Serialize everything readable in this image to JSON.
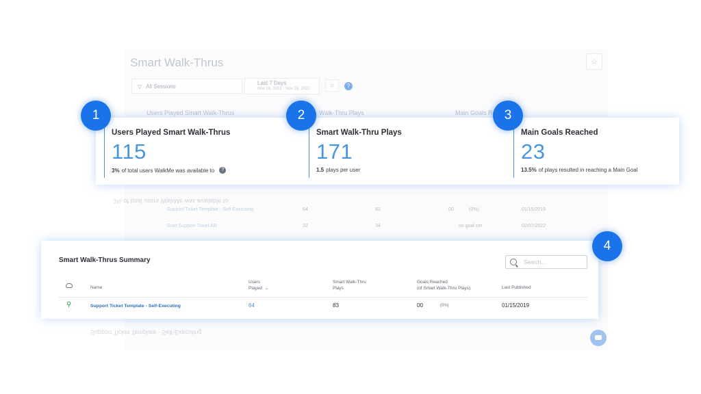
{
  "background": {
    "title": "Smart Walk-Thrus",
    "filter_label": "All Sessions",
    "date_label": "Last 7 Days",
    "date_range": "Nov 18, 2022 - Nov 25, 2022",
    "headers": [
      "Users Played Smart Walk-Thrus",
      "Walk-Thru Plays",
      "Main Goals Re"
    ],
    "rows": [
      {
        "name": "Support Ticket Template - Self-Executing",
        "users": "64",
        "plays": "83",
        "goals": "00",
        "pct": "(0%)",
        "date": "01/15/2019"
      },
      {
        "name": "Start Support Ticket AB",
        "users": "32",
        "plays": "34",
        "goals": "",
        "pct": "no goal set",
        "date": "02/07/2022"
      }
    ]
  },
  "stats": [
    {
      "badge": "1",
      "label": "Users Played Smart Walk-Thrus",
      "value": "115",
      "sub_bold": "3%",
      "sub_text": "of total users WalkMe was available to",
      "has_info": true
    },
    {
      "badge": "2",
      "label": "Smart Walk-Thru Plays",
      "value": "171",
      "sub_bold": "1.5",
      "sub_text": "plays per user",
      "has_info": false
    },
    {
      "badge": "3",
      "label": "Main Goals Reached",
      "value": "23",
      "sub_bold": "13.5%",
      "sub_text": "of plays resulted in reaching a Main Goal",
      "has_info": false
    }
  ],
  "summary": {
    "badge": "4",
    "title": "Smart Walk-Thrus Summary",
    "search_placeholder": "Search...",
    "columns": {
      "name": "Name",
      "users_line1": "Users",
      "users_line2": "Played",
      "plays_line1": "Smart Walk-Thru",
      "plays_line2": "Plays",
      "goals_line1": "Goals Reached",
      "goals_line2": "(of Smart Walk-Thru Plays)",
      "published": "Last Published"
    },
    "row": {
      "name": "Support Ticket Template - Self-Executing",
      "users": "64",
      "plays": "83",
      "goals": "00",
      "pct": "(0%)",
      "published": "01/15/2019"
    }
  },
  "colors": {
    "accent": "#1a73e8",
    "value_blue": "#4a95dd",
    "link_blue": "#2f6fbf"
  }
}
